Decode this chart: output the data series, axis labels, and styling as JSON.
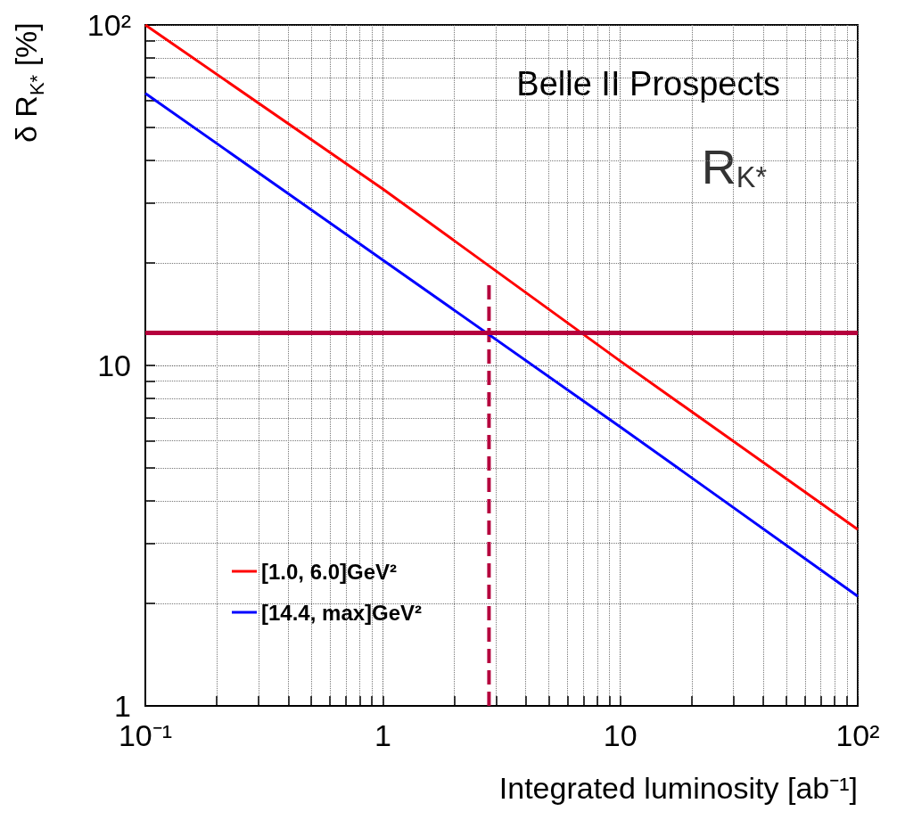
{
  "chart_data": {
    "type": "line",
    "xlabel": "Integrated luminosity [ab⁻¹]",
    "ylabel": "δ R$_{K*}$ [%]",
    "annotations": [
      "Belle II Prospects",
      "R$_{K*}$"
    ],
    "log": "xy",
    "grid": true,
    "legend": "bottom left",
    "marker": "none",
    "line_style": "solid",
    "xlim": [
      0.1,
      100
    ],
    "ylim": [
      1,
      100
    ],
    "xticks": [
      {
        "value": 0.1,
        "label": "10⁻¹"
      },
      1,
      10,
      {
        "value": 100,
        "label": "10²"
      }
    ],
    "yticks": [
      1,
      10,
      {
        "value": 100,
        "label": "10²"
      }
    ],
    "series": [
      {
        "name": "[1.0, 6.0]GeV²",
        "color": "#ff0000",
        "x": [
          0.1,
          1,
          10,
          100
        ],
        "values": [
          100,
          33,
          10.3,
          3.3
        ]
      },
      {
        "name": "[14.4, max]GeV²",
        "color": "#0000ff",
        "x": [
          0.1,
          1,
          10,
          100
        ],
        "values": [
          63,
          20.4,
          6.6,
          2.1
        ]
      },
      {
        "color": "#b5003d",
        "line_style": "dashed",
        "x": [
          2.8,
          2.8
        ],
        "values": [
          1,
          17.4
        ]
      }
    ],
    "ref_lines": [
      {
        "axis": "y",
        "value": 12.5,
        "color": "#b5003d"
      }
    ]
  }
}
